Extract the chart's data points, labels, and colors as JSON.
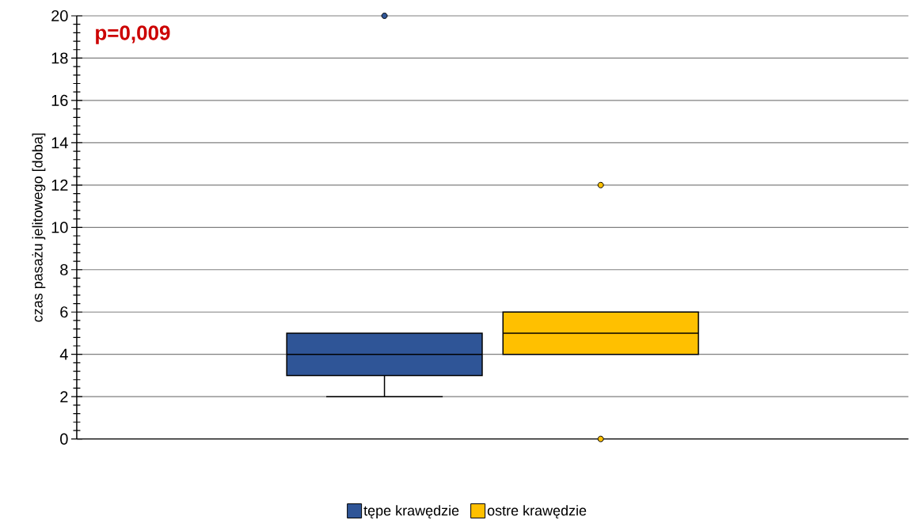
{
  "chart_data": {
    "type": "box",
    "ylabel": "czas pasażu jelitowego [doba]",
    "annotations": [
      "p=0,009"
    ],
    "categories": [
      null
    ],
    "series": [
      {
        "name": "tępe krawędzie",
        "color": "#2f5597",
        "boxes": [
          {
            "low": 2,
            "q1": 3,
            "median": 4,
            "q3": 5,
            "high": 5,
            "outliers": [
              20
            ]
          }
        ]
      },
      {
        "name": "ostre krawędzie",
        "color": "#ffc000",
        "boxes": [
          {
            "low": 4,
            "q1": 4,
            "median": 5,
            "q3": 6,
            "high": 6,
            "outliers": [
              12,
              0
            ]
          }
        ]
      }
    ],
    "ylim": [
      0,
      20
    ],
    "yticks": [
      0,
      2,
      4,
      6,
      8,
      10,
      12,
      14,
      16,
      18,
      20
    ],
    "grid": "y",
    "legend": "bottom"
  }
}
